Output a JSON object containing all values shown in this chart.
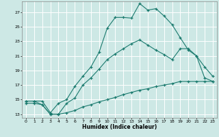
{
  "xlabel": "Humidex (Indice chaleur)",
  "bg_color": "#cde8e5",
  "grid_color": "#ffffff",
  "line_color": "#1a7a6e",
  "xlim": [
    -0.5,
    23.5
  ],
  "ylim": [
    12.5,
    28.5
  ],
  "xticks": [
    0,
    1,
    2,
    3,
    4,
    5,
    6,
    7,
    8,
    9,
    10,
    11,
    12,
    13,
    14,
    15,
    16,
    17,
    18,
    19,
    20,
    21,
    22,
    23
  ],
  "yticks": [
    13,
    15,
    17,
    19,
    21,
    23,
    25,
    27
  ],
  "line1_x": [
    0,
    1,
    2,
    3,
    4,
    5,
    6,
    7,
    8,
    9,
    10,
    11,
    12,
    13,
    14,
    15,
    16,
    17,
    18,
    19,
    20,
    21,
    22,
    23
  ],
  "line1_y": [
    14.8,
    14.8,
    14.8,
    13.2,
    14.5,
    15.0,
    16.8,
    18.2,
    19.5,
    21.5,
    24.8,
    26.3,
    26.3,
    26.2,
    28.2,
    27.3,
    27.5,
    26.5,
    25.3,
    23.5,
    21.8,
    21.0,
    19.5,
    18.2
  ],
  "line2_x": [
    0,
    1,
    2,
    3,
    4,
    5,
    6,
    7,
    8,
    9,
    10,
    11,
    12,
    13,
    14,
    15,
    16,
    17,
    18,
    19,
    20,
    21,
    22,
    23
  ],
  "line2_y": [
    14.8,
    14.8,
    14.3,
    13.0,
    13.0,
    14.5,
    15.2,
    17.0,
    18.0,
    19.2,
    20.5,
    21.3,
    22.0,
    22.7,
    23.2,
    22.5,
    21.8,
    21.2,
    20.5,
    22.0,
    22.0,
    21.0,
    18.0,
    17.5
  ],
  "line3_x": [
    0,
    1,
    2,
    3,
    4,
    5,
    6,
    7,
    8,
    9,
    10,
    11,
    12,
    13,
    14,
    15,
    16,
    17,
    18,
    19,
    20,
    21,
    22,
    23
  ],
  "line3_y": [
    14.5,
    14.5,
    14.3,
    13.0,
    13.0,
    13.2,
    13.5,
    14.0,
    14.3,
    14.7,
    15.0,
    15.3,
    15.7,
    16.0,
    16.3,
    16.5,
    16.8,
    17.0,
    17.2,
    17.5,
    17.5,
    17.5,
    17.5,
    17.5
  ]
}
